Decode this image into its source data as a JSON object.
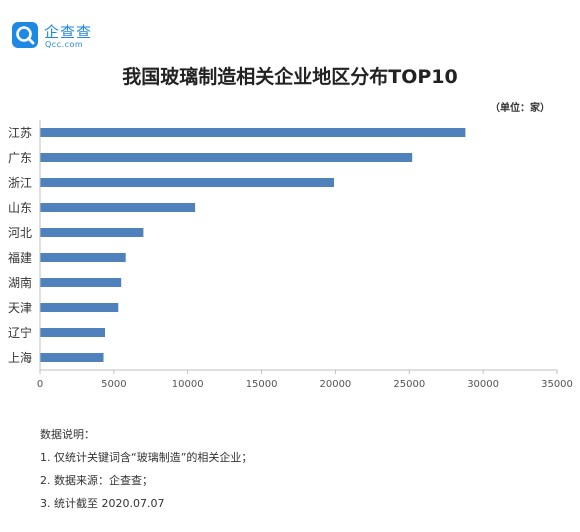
{
  "brand": {
    "name_cn": "企查查",
    "name_en": "Qcc.com",
    "color": "#1e88e5"
  },
  "unit_label": "（单位：家）",
  "notes": {
    "heading": "数据说明：",
    "items": [
      "1. 仅统计关键词含“玻璃制造”的相关企业；",
      "2. 数据来源：企查查；",
      "3. 统计截至 2020.07.07"
    ]
  },
  "chart_data": {
    "type": "bar",
    "orientation": "horizontal",
    "title": "我国玻璃制造相关企业地区分布TOP10",
    "categories": [
      "江苏",
      "广东",
      "浙江",
      "山东",
      "河北",
      "福建",
      "湖南",
      "天津",
      "辽宁",
      "上海"
    ],
    "values": [
      28800,
      25200,
      19900,
      10500,
      7000,
      5800,
      5500,
      5300,
      4400,
      4300
    ],
    "xlim": [
      0,
      35000
    ],
    "xticks": [
      "0",
      "5000",
      "10000",
      "15000",
      "20000",
      "25000",
      "30000",
      "35000"
    ],
    "grid": false,
    "bar_color": "#4f81bd",
    "axis_color": "#bfbfbf"
  }
}
